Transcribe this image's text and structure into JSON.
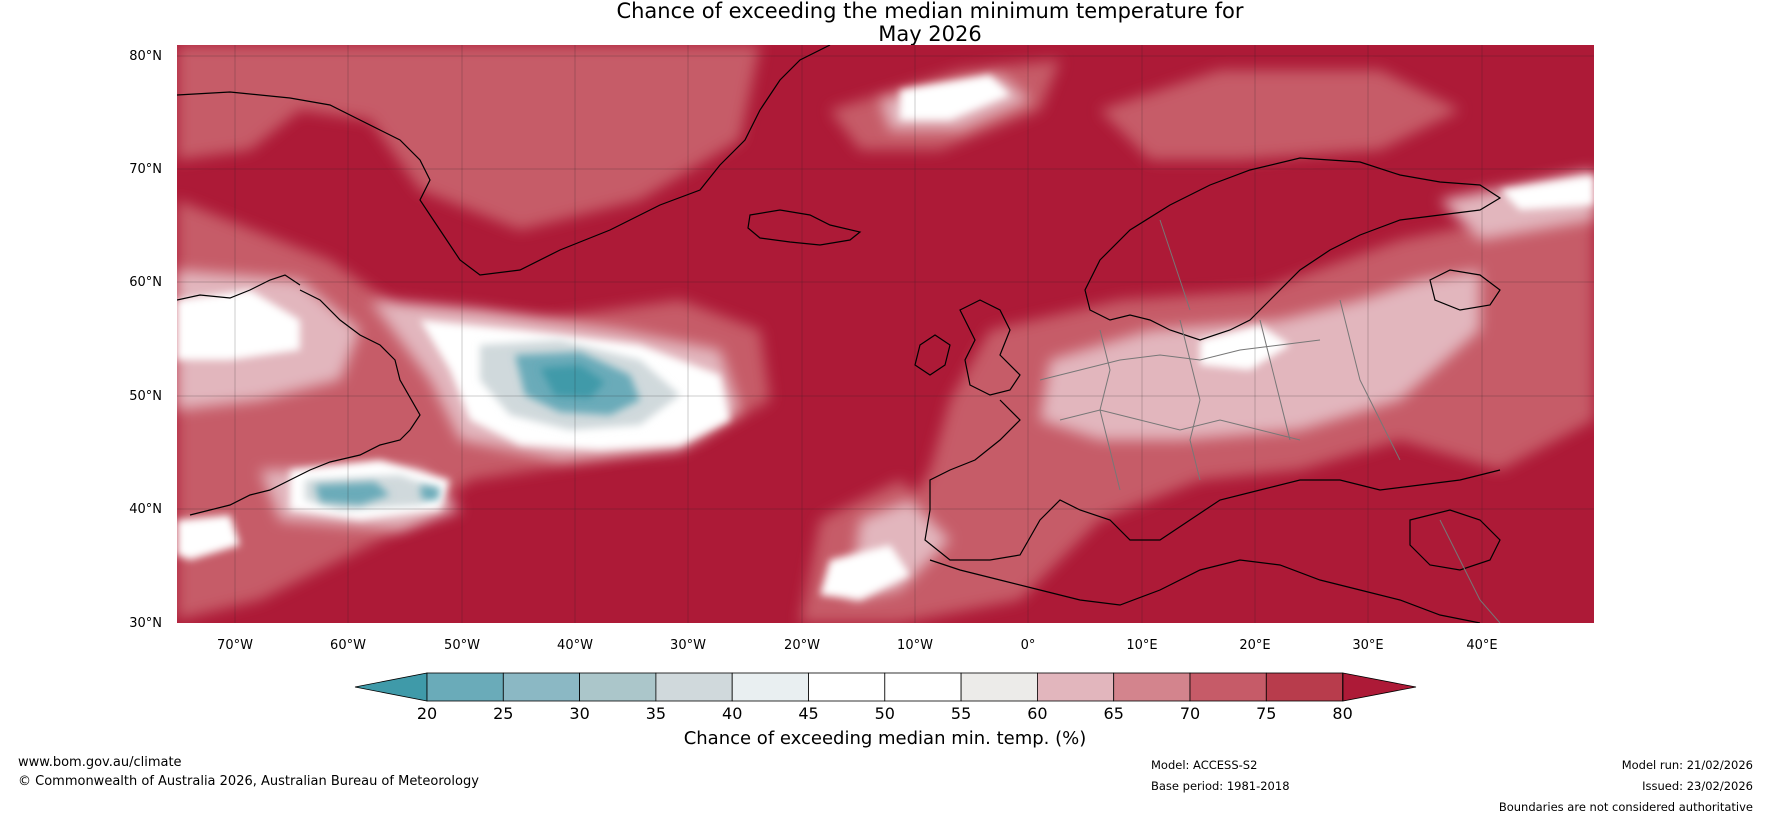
{
  "title": {
    "line1": "Chance of exceeding the median minimum temperature for",
    "line2": "May 2026"
  },
  "map": {
    "lat_labels": [
      "80°N",
      "70°N",
      "60°N",
      "50°N",
      "40°N",
      "30°N"
    ],
    "lon_labels": [
      "70°W",
      "60°W",
      "50°W",
      "40°W",
      "30°W",
      "20°W",
      "10°W",
      "0°",
      "10°E",
      "20°E",
      "30°E",
      "40°E"
    ],
    "lat_range": [
      30,
      81
    ],
    "lon_range": [
      -75,
      50
    ]
  },
  "colorbar": {
    "ticks": [
      "20",
      "25",
      "30",
      "35",
      "40",
      "45",
      "50",
      "55",
      "60",
      "65",
      "70",
      "75",
      "80"
    ],
    "colors": [
      "#3f9aa9",
      "#6aabb9",
      "#8bb8c4",
      "#abc6ca",
      "#d0d9dc",
      "#e9eff1",
      "#ffffff",
      "#ffffff",
      "#ecebe9",
      "#e2b6bd",
      "#d3848d",
      "#c65b68",
      "#b83c4c",
      "#ad1a37"
    ],
    "label": "Chance of exceeding median min. temp. (%)"
  },
  "footer": {
    "url": "www.bom.gov.au/climate",
    "copyright": "© Commonwealth of Australia 2026, Australian Bureau of Meteorology",
    "model": "Model: ACCESS-S2",
    "base_period": "Base period: 1981-2018",
    "model_run": "Model run: 21/02/2026",
    "issued": "Issued: 23/02/2026",
    "disclaimer": "Boundaries are not considered authoritative"
  }
}
